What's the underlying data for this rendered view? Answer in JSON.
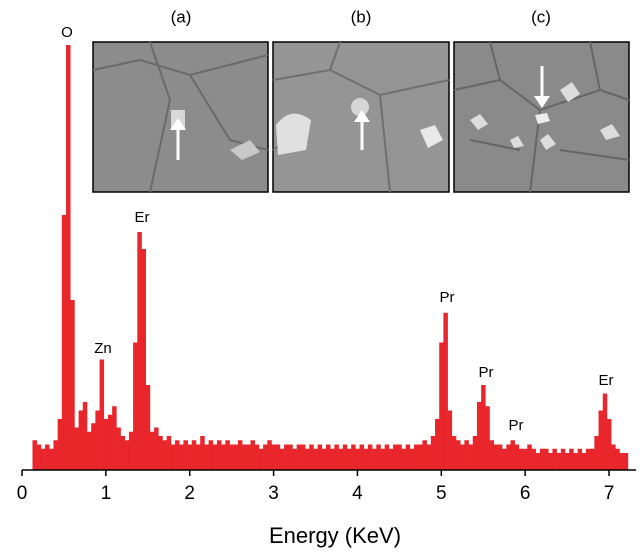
{
  "chart_data": {
    "type": "bar",
    "xlabel": "Energy (KeV)",
    "x": [
      0.15,
      0.2,
      0.25,
      0.3,
      0.35,
      0.4,
      0.45,
      0.5,
      0.55,
      0.6,
      0.65,
      0.7,
      0.75,
      0.8,
      0.85,
      0.9,
      0.95,
      1.0,
      1.05,
      1.1,
      1.15,
      1.2,
      1.25,
      1.3,
      1.35,
      1.4,
      1.45,
      1.5,
      1.55,
      1.6,
      1.65,
      1.7,
      1.75,
      1.8,
      1.85,
      1.9,
      1.95,
      2.0,
      2.05,
      2.1,
      2.15,
      2.2,
      2.25,
      2.3,
      2.35,
      2.4,
      2.45,
      2.5,
      2.55,
      2.6,
      2.65,
      2.7,
      2.75,
      2.8,
      2.85,
      2.9,
      2.95,
      3.0,
      3.05,
      3.1,
      3.15,
      3.2,
      3.25,
      3.3,
      3.35,
      3.4,
      3.45,
      3.5,
      3.55,
      3.6,
      3.65,
      3.7,
      3.75,
      3.8,
      3.85,
      3.9,
      3.95,
      4.0,
      4.05,
      4.1,
      4.15,
      4.2,
      4.25,
      4.3,
      4.35,
      4.4,
      4.45,
      4.5,
      4.55,
      4.6,
      4.65,
      4.7,
      4.75,
      4.8,
      4.85,
      4.9,
      4.95,
      5.0,
      5.05,
      5.1,
      5.15,
      5.2,
      5.25,
      5.3,
      5.35,
      5.4,
      5.45,
      5.5,
      5.55,
      5.6,
      5.65,
      5.7,
      5.75,
      5.8,
      5.85,
      5.9,
      5.95,
      6.0,
      6.05,
      6.1,
      6.15,
      6.2,
      6.25,
      6.3,
      6.35,
      6.4,
      6.45,
      6.5,
      6.55,
      6.6,
      6.65,
      6.7,
      6.75,
      6.8,
      6.85,
      6.9,
      6.95,
      7.0,
      7.05,
      7.1,
      7.15,
      7.2
    ],
    "values": [
      7,
      6,
      5,
      6,
      5,
      7,
      12,
      60,
      100,
      40,
      10,
      14,
      16,
      9,
      11,
      14,
      26,
      12,
      13,
      15,
      10,
      8,
      7,
      9,
      30,
      56,
      52,
      20,
      9,
      10,
      8,
      7,
      8,
      6,
      7,
      6,
      7,
      6,
      7,
      6,
      8,
      6,
      7,
      6,
      7,
      6,
      7,
      6,
      6,
      7,
      6,
      6,
      7,
      6,
      5,
      6,
      7,
      6,
      6,
      5,
      6,
      6,
      5,
      6,
      6,
      5,
      6,
      5,
      6,
      5,
      6,
      5,
      6,
      5,
      6,
      5,
      6,
      5,
      6,
      5,
      6,
      5,
      6,
      5,
      6,
      5,
      6,
      6,
      5,
      6,
      5,
      6,
      6,
      7,
      6,
      8,
      12,
      30,
      37,
      14,
      8,
      7,
      6,
      7,
      6,
      8,
      16,
      20,
      15,
      7,
      6,
      6,
      5,
      6,
      7,
      6,
      5,
      5,
      6,
      5,
      4,
      5,
      5,
      4,
      5,
      4,
      5,
      4,
      5,
      4,
      5,
      4,
      5,
      5,
      8,
      14,
      18,
      12,
      6,
      5,
      4,
      4
    ],
    "color": "#e8262b",
    "xlim": [
      0,
      7.25
    ],
    "xticks": [
      0,
      1,
      2,
      3,
      4,
      5,
      6,
      7
    ],
    "ylim": [
      0,
      100
    ],
    "annotations": [
      "O",
      "Zn",
      "Er",
      "Pr",
      "Pr",
      "Pr",
      "Er"
    ],
    "panel_labels": [
      "(a)",
      "(b)",
      "(c)"
    ]
  }
}
